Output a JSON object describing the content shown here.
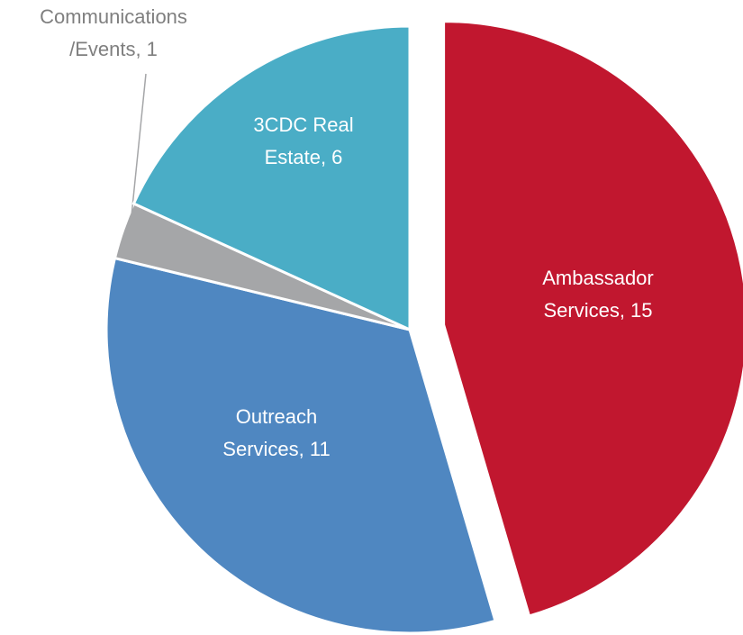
{
  "chart_data": {
    "type": "pie",
    "values": [
      15,
      11,
      1,
      6
    ],
    "value_labels": [
      [
        "Ambassador",
        "Services, 15"
      ],
      [
        "Outreach",
        "Services, 11"
      ],
      [
        "Communications",
        "/Events, 1"
      ],
      [
        "3CDC Real",
        "Estate, 6"
      ]
    ],
    "colors": [
      "#c1172f",
      "#4f87c1",
      "#a5a6a8",
      "#4aadc6"
    ],
    "exploded": [
      true,
      false,
      false,
      false
    ]
  }
}
